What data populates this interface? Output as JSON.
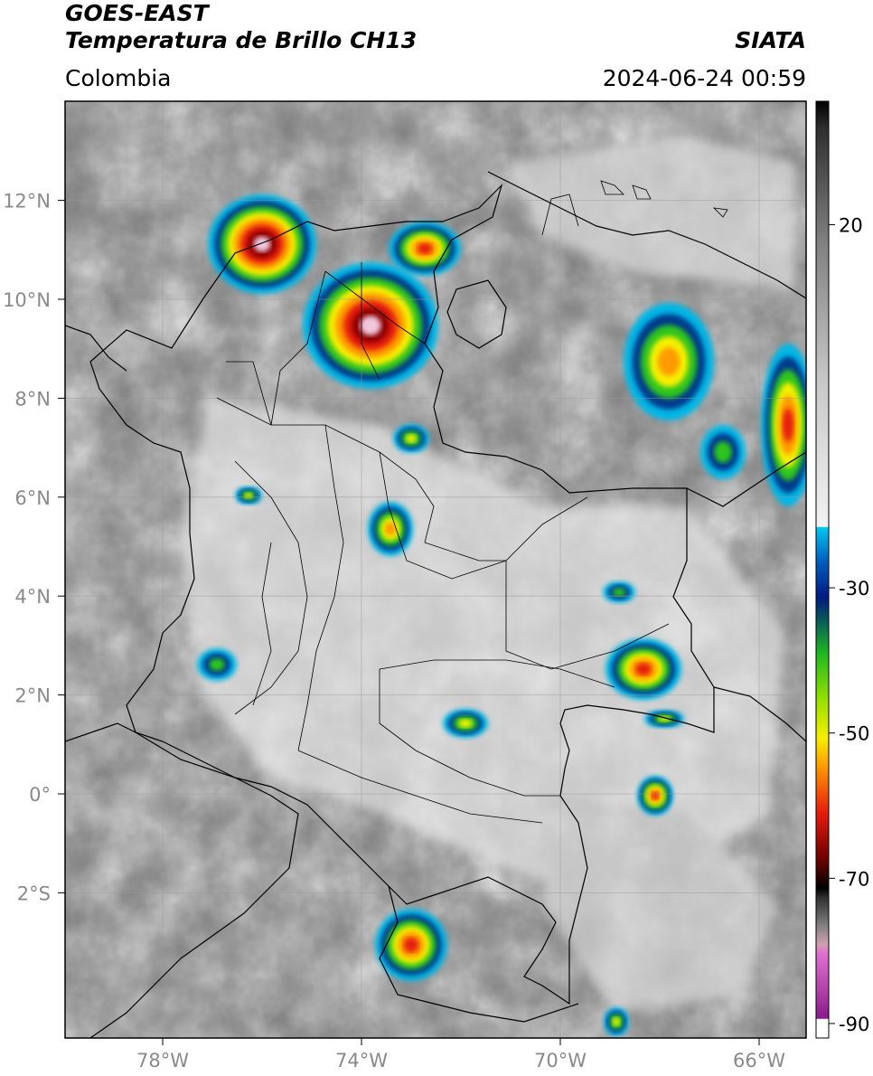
{
  "header": {
    "satellite": "GOES-EAST",
    "product": "Temperatura de Brillo CH13",
    "region": "Colombia",
    "organization": "SIATA",
    "timestamp": "2024-06-24 00:59"
  },
  "map": {
    "lat_ticks": [
      {
        "lat": 12,
        "label": "12°N"
      },
      {
        "lat": 10,
        "label": "10°N"
      },
      {
        "lat": 8,
        "label": "8°N"
      },
      {
        "lat": 6,
        "label": "6°N"
      },
      {
        "lat": 4,
        "label": "4°N"
      },
      {
        "lat": 2,
        "label": "2°N"
      },
      {
        "lat": 0,
        "label": "0°"
      },
      {
        "lat": -2,
        "label": "2°S"
      }
    ],
    "lon_ticks": [
      {
        "lon": -78,
        "label": "78°W"
      },
      {
        "lon": -74,
        "label": "74°W"
      },
      {
        "lon": -70,
        "label": "70°W"
      },
      {
        "lon": -66,
        "label": "66°W"
      }
    ],
    "colors": {
      "cold_core": "#f0c8dc",
      "deep_red": "#8b0000",
      "red": "#e51b0e",
      "orange": "#ff9a00",
      "yellow": "#f5ef00",
      "green": "#2fc51f",
      "dark_blue": "#003a8c",
      "cyan": "#00b7e6",
      "border": "#000000"
    }
  },
  "colorbar": {
    "ticks": [
      {
        "value": 20,
        "label": "20"
      },
      {
        "value": -30,
        "label": "-30"
      },
      {
        "value": -50,
        "label": "-50"
      },
      {
        "value": -70,
        "label": "-70"
      },
      {
        "value": -90,
        "label": "-90"
      }
    ]
  }
}
